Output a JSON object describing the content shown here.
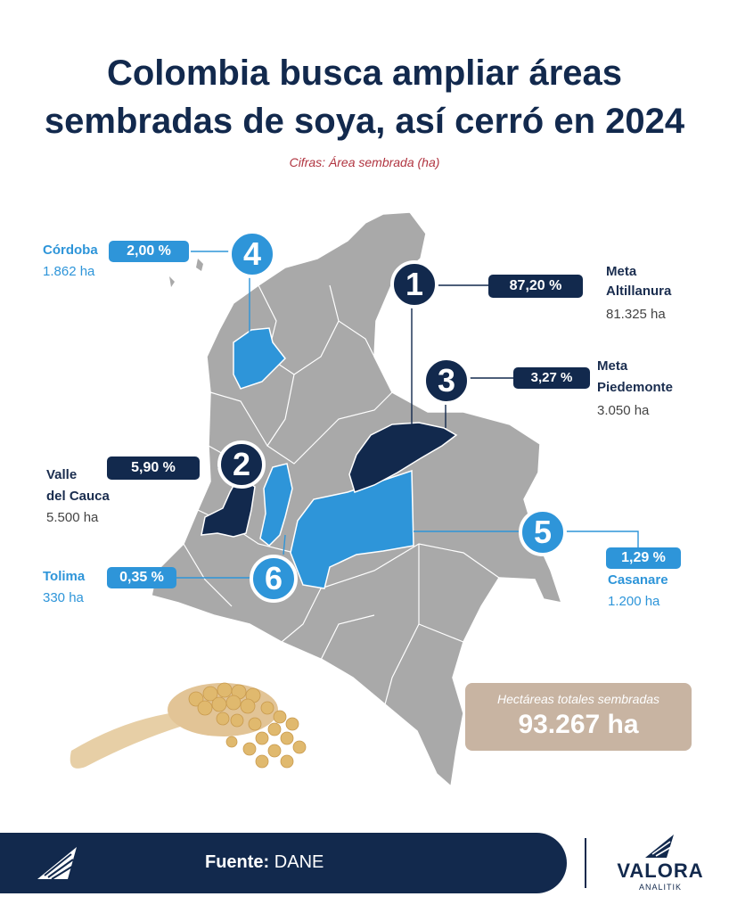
{
  "header": {
    "title_line1": "Colombia busca ampliar áreas",
    "title_line2": "sembradas de soya, así cerró en 2024",
    "subtitle": "Cifras: Área sembrada (ha)"
  },
  "colors": {
    "navy": "#12294d",
    "blue": "#2e95d9",
    "gray_map": "#a9a9a9",
    "tan_box": "#c8b4a2",
    "subtitle_red": "#b0333f"
  },
  "regions": [
    {
      "number": "1",
      "name_line1": "Meta",
      "name_line2": "Altillanura",
      "percent": "87,20 %",
      "area": "81.325 ha",
      "style": "dark"
    },
    {
      "number": "2",
      "name_line1": "Valle",
      "name_line2": "del Cauca",
      "percent": "5,90 %",
      "area": "5.500 ha",
      "style": "dark"
    },
    {
      "number": "3",
      "name_line1": "Meta",
      "name_line2": "Piedemonte",
      "percent": "3,27 %",
      "area": "3.050 ha",
      "style": "dark"
    },
    {
      "number": "4",
      "name_line1": "Córdoba",
      "name_line2": "",
      "percent": "2,00 %",
      "area": "1.862 ha",
      "style": "blue"
    },
    {
      "number": "5",
      "name_line1": "Casanare",
      "name_line2": "",
      "percent": "1,29 %",
      "area": "1.200 ha",
      "style": "blue"
    },
    {
      "number": "6",
      "name_line1": "Tolima",
      "name_line2": "",
      "percent": "0,35 %",
      "area": "330 ha",
      "style": "blue"
    }
  ],
  "total": {
    "caption": "Hectáreas totales sembradas",
    "value": "93.267 ha"
  },
  "footer": {
    "source_label": "Fuente:",
    "source_value": "DANE",
    "brand_name": "VALORA",
    "brand_sub": "ANALITIK"
  }
}
